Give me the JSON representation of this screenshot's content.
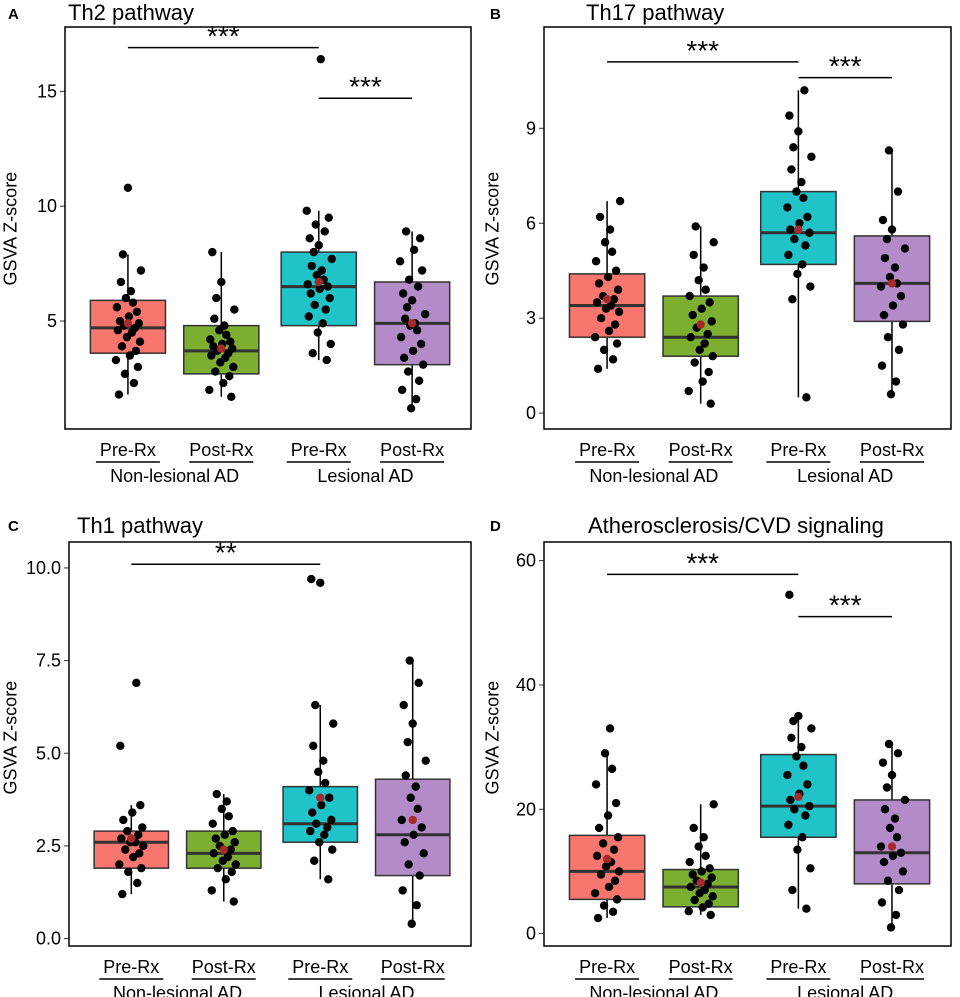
{
  "figure": {
    "colors": {
      "pre_nonlesional": "#F8766D",
      "post_nonlesional": "#7CAE30",
      "pre_lesional": "#1FC3C8",
      "post_lesional": "#B38BC8",
      "points": "#000000",
      "mean_point": "#A52A2A"
    }
  },
  "chart_data": [
    {
      "type": "box",
      "letter": "A",
      "title": "Th2 pathway",
      "ylabel": "GSVA Z-score",
      "ylim": [
        0.3,
        17.8
      ],
      "yticks": [
        5,
        10,
        15
      ],
      "ytick_labels": [
        "5",
        "10",
        "15"
      ],
      "categories": [
        "Pre-Rx",
        "Post-Rx",
        "Pre-Rx",
        "Post-Rx"
      ],
      "groups": [
        "Non-lesional AD",
        "Lesional AD"
      ],
      "boxes": [
        {
          "q1": 3.6,
          "median": 4.7,
          "q3": 5.9,
          "min": 1.8,
          "max": 7.9,
          "mean": 4.9,
          "points": [
            1.8,
            2.3,
            2.7,
            3.0,
            3.3,
            3.5,
            3.7,
            3.9,
            4.1,
            4.3,
            4.5,
            4.6,
            4.7,
            4.8,
            4.9,
            5.0,
            5.2,
            5.4,
            5.6,
            5.8,
            6.0,
            6.3,
            6.7,
            7.2,
            7.9,
            10.8
          ]
        },
        {
          "q1": 2.7,
          "median": 3.7,
          "q3": 4.8,
          "min": 1.7,
          "max": 8.0,
          "mean": 3.8,
          "points": [
            1.7,
            2.0,
            2.3,
            2.6,
            2.8,
            3.0,
            3.2,
            3.4,
            3.5,
            3.6,
            3.7,
            3.8,
            3.9,
            4.0,
            4.1,
            4.2,
            4.4,
            4.6,
            4.8,
            5.1,
            5.5,
            6.0,
            6.7,
            8.0
          ]
        },
        {
          "q1": 4.8,
          "median": 6.5,
          "q3": 8.0,
          "min": 3.3,
          "max": 9.8,
          "mean": 6.7,
          "points": [
            3.3,
            3.6,
            4.0,
            4.5,
            4.9,
            5.2,
            5.5,
            5.7,
            6.0,
            6.2,
            6.4,
            6.5,
            6.6,
            6.8,
            7.0,
            7.2,
            7.4,
            7.7,
            8.0,
            8.3,
            8.6,
            8.9,
            9.2,
            9.5,
            9.8,
            16.4
          ]
        },
        {
          "q1": 3.1,
          "median": 4.9,
          "q3": 6.7,
          "min": 1.2,
          "max": 8.9,
          "mean": 4.9,
          "points": [
            1.2,
            1.6,
            2.0,
            2.4,
            2.8,
            3.1,
            3.4,
            3.7,
            4.0,
            4.3,
            4.6,
            4.8,
            4.9,
            5.1,
            5.3,
            5.6,
            5.9,
            6.2,
            6.5,
            6.8,
            7.2,
            7.6,
            8.1,
            8.6,
            8.9
          ]
        }
      ],
      "significance": [
        {
          "from": 0,
          "to": 2,
          "y": 16.9,
          "label": "***"
        },
        {
          "from": 2,
          "to": 3,
          "y": 14.7,
          "label": "***"
        }
      ]
    },
    {
      "type": "box",
      "letter": "B",
      "title": "Th17 pathway",
      "ylabel": "GSVA Z-score",
      "ylim": [
        -0.5,
        12.2
      ],
      "yticks": [
        0,
        3,
        6,
        9
      ],
      "ytick_labels": [
        "0",
        "3",
        "6",
        "9"
      ],
      "categories": [
        "Pre-Rx",
        "Post-Rx",
        "Pre-Rx",
        "Post-Rx"
      ],
      "groups": [
        "Non-lesional AD",
        "Lesional AD"
      ],
      "boxes": [
        {
          "q1": 2.4,
          "median": 3.4,
          "q3": 4.4,
          "min": 1.4,
          "max": 6.7,
          "mean": 3.6,
          "points": [
            1.4,
            1.7,
            2.0,
            2.2,
            2.4,
            2.6,
            2.8,
            3.0,
            3.2,
            3.3,
            3.4,
            3.5,
            3.6,
            3.7,
            3.9,
            4.1,
            4.3,
            4.5,
            4.8,
            5.1,
            5.4,
            5.8,
            6.2,
            6.7
          ]
        },
        {
          "q1": 1.8,
          "median": 2.4,
          "q3": 3.7,
          "min": 0.3,
          "max": 5.9,
          "mean": 2.8,
          "points": [
            0.3,
            0.7,
            1.0,
            1.3,
            1.6,
            1.8,
            2.0,
            2.2,
            2.4,
            2.5,
            2.7,
            2.9,
            3.1,
            3.3,
            3.5,
            3.7,
            3.9,
            4.2,
            4.6,
            5.0,
            5.4,
            5.9
          ]
        },
        {
          "q1": 4.7,
          "median": 5.7,
          "q3": 7.0,
          "min": 0.5,
          "max": 10.2,
          "mean": 5.8,
          "points": [
            0.5,
            3.6,
            4.0,
            4.4,
            4.7,
            5.0,
            5.3,
            5.5,
            5.7,
            5.8,
            6.0,
            6.2,
            6.5,
            6.8,
            7.0,
            7.3,
            7.7,
            8.1,
            8.4,
            8.9,
            9.4,
            10.2
          ]
        },
        {
          "q1": 2.9,
          "median": 4.1,
          "q3": 5.6,
          "min": 0.6,
          "max": 8.3,
          "mean": 4.1,
          "points": [
            0.6,
            1.0,
            1.5,
            2.0,
            2.4,
            2.8,
            3.1,
            3.4,
            3.7,
            4.0,
            4.1,
            4.3,
            4.6,
            4.9,
            5.2,
            5.5,
            5.8,
            6.1,
            7.0,
            8.3
          ]
        }
      ],
      "significance": [
        {
          "from": 0,
          "to": 2,
          "y": 11.1,
          "label": "***"
        },
        {
          "from": 2,
          "to": 3,
          "y": 10.6,
          "label": "***"
        }
      ]
    },
    {
      "type": "box",
      "letter": "C",
      "title": "Th1 pathway",
      "ylabel": "GSVA Z-score",
      "ylim": [
        -0.2,
        10.7
      ],
      "yticks": [
        0.0,
        2.5,
        5.0,
        7.5,
        10.0
      ],
      "ytick_labels": [
        "0.0",
        "2.5",
        "5.0",
        "7.5",
        "10.0"
      ],
      "categories": [
        "Pre-Rx",
        "Post-Rx",
        "Pre-Rx",
        "Post-Rx"
      ],
      "groups": [
        "Non-lesional AD",
        "Lesional AD"
      ],
      "boxes": [
        {
          "q1": 1.9,
          "median": 2.6,
          "q3": 2.9,
          "min": 1.2,
          "max": 3.6,
          "mean": 2.7,
          "points": [
            1.2,
            1.5,
            1.8,
            1.9,
            2.0,
            2.2,
            2.3,
            2.4,
            2.5,
            2.6,
            2.6,
            2.7,
            2.8,
            2.9,
            3.0,
            3.2,
            3.4,
            3.6,
            5.2,
            6.9
          ]
        },
        {
          "q1": 1.9,
          "median": 2.3,
          "q3": 2.9,
          "min": 1.0,
          "max": 3.9,
          "mean": 2.4,
          "points": [
            1.0,
            1.3,
            1.6,
            1.8,
            1.9,
            2.0,
            2.1,
            2.2,
            2.3,
            2.4,
            2.5,
            2.6,
            2.7,
            2.8,
            2.9,
            3.1,
            3.3,
            3.5,
            3.7,
            3.9
          ]
        },
        {
          "q1": 2.6,
          "median": 3.1,
          "q3": 4.1,
          "min": 1.6,
          "max": 6.3,
          "mean": 3.8,
          "points": [
            1.6,
            2.1,
            2.4,
            2.6,
            2.8,
            2.9,
            3.0,
            3.1,
            3.2,
            3.4,
            3.6,
            3.8,
            4.0,
            4.2,
            4.5,
            4.8,
            5.2,
            5.8,
            6.3,
            9.6,
            9.7
          ]
        },
        {
          "q1": 1.7,
          "median": 2.8,
          "q3": 4.3,
          "min": 0.4,
          "max": 7.5,
          "mean": 3.2,
          "points": [
            0.4,
            0.9,
            1.3,
            1.7,
            2.0,
            2.3,
            2.6,
            2.8,
            3.0,
            3.2,
            3.5,
            3.8,
            4.1,
            4.4,
            4.8,
            5.3,
            5.8,
            6.3,
            6.9,
            7.5
          ]
        }
      ],
      "significance": [
        {
          "from": 0,
          "to": 2,
          "y": 10.1,
          "label": "**"
        }
      ]
    },
    {
      "type": "box",
      "letter": "D",
      "title": "Atherosclerosis/CVD signaling",
      "ylabel": "GSVA Z-score",
      "ylim": [
        -2,
        63
      ],
      "yticks": [
        0,
        20,
        40,
        60
      ],
      "ytick_labels": [
        "0",
        "20",
        "40",
        "60"
      ],
      "categories": [
        "Pre-Rx",
        "Post-Rx",
        "Pre-Rx",
        "Post-Rx"
      ],
      "groups": [
        "Non-lesional AD",
        "Lesional AD"
      ],
      "boxes": [
        {
          "q1": 5.5,
          "median": 10.0,
          "q3": 15.8,
          "min": 2.5,
          "max": 29.0,
          "mean": 12.0,
          "points": [
            2.5,
            3.5,
            4.5,
            5.5,
            6.5,
            7.5,
            8.5,
            9.5,
            10.0,
            10.8,
            11.5,
            12.5,
            13.5,
            14.5,
            15.5,
            17.0,
            19.0,
            21.0,
            24.0,
            26.5,
            29.0,
            33.0
          ]
        },
        {
          "q1": 4.3,
          "median": 7.5,
          "q3": 10.3,
          "min": 3.0,
          "max": 20.8,
          "mean": 8.2,
          "points": [
            3.0,
            3.6,
            4.2,
            4.8,
            5.4,
            6.0,
            6.5,
            7.0,
            7.5,
            8.0,
            8.5,
            9.0,
            9.5,
            10.0,
            10.5,
            11.5,
            12.5,
            14.0,
            15.5,
            17.0,
            20.8
          ]
        },
        {
          "q1": 15.5,
          "median": 20.5,
          "q3": 28.8,
          "min": 4.0,
          "max": 35.0,
          "mean": 22.0,
          "points": [
            4.0,
            7.0,
            10.5,
            13.5,
            15.5,
            17.5,
            19.0,
            20.0,
            20.5,
            21.5,
            22.5,
            24.0,
            25.5,
            27.0,
            28.5,
            30.0,
            31.5,
            33.0,
            34.2,
            35.0,
            54.5
          ]
        },
        {
          "q1": 8.0,
          "median": 13.0,
          "q3": 21.5,
          "min": 1.0,
          "max": 30.5,
          "mean": 14.0,
          "points": [
            1.0,
            3.0,
            5.0,
            7.0,
            8.5,
            10.0,
            11.5,
            12.5,
            13.0,
            14.0,
            15.5,
            17.0,
            18.5,
            20.0,
            21.5,
            23.5,
            25.5,
            27.5,
            29.0,
            30.5
          ]
        }
      ],
      "significance": [
        {
          "from": 0,
          "to": 2,
          "y": 57.8,
          "label": "***"
        },
        {
          "from": 2,
          "to": 3,
          "y": 51.0,
          "label": "***"
        }
      ]
    }
  ]
}
